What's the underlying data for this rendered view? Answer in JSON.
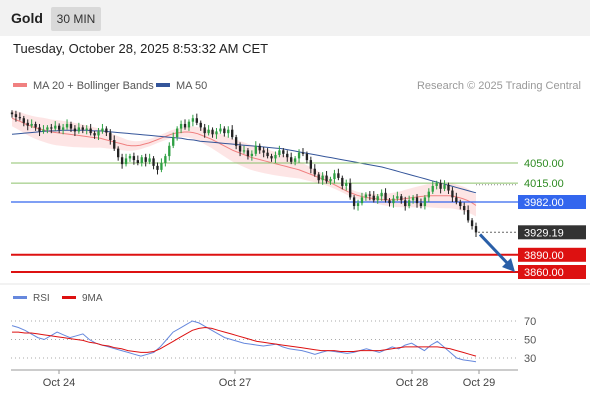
{
  "header": {
    "title": "Gold",
    "timeframe": "30 MIN"
  },
  "timestamp": "Tuesday, October 28, 2025 8:53:32 AM CET",
  "legend": {
    "ma20_label": "MA 20 + Bollinger Bands",
    "ma50_label": "MA 50",
    "attribution": "Research © 2025 Trading Central"
  },
  "rsi_legend": {
    "rsi_label": "RSI",
    "ma_label": "9MA"
  },
  "colors": {
    "ma20": "#f08080",
    "ma50": "#34559a",
    "bollinger": "#fde0e0",
    "up": "#2ea043",
    "down": "#222222",
    "green_level": "#8cc06b",
    "blue_level": "#3366ee",
    "red_level": "#dd1111",
    "rsi": "#6688dd",
    "rsi_ma": "#dd1111"
  },
  "chart_data": [
    {
      "type": "candlestick",
      "title": "Gold",
      "ylim": [
        3840,
        4170
      ],
      "price_levels": [
        {
          "value": 4050.0,
          "label": "4050.00",
          "style": "green-line"
        },
        {
          "value": 4015.0,
          "label": "4015.00",
          "style": "green-line"
        },
        {
          "value": 3982.0,
          "label": "3982.00",
          "style": "blue-line-box"
        },
        {
          "value": 3929.19,
          "label": "3929.19",
          "style": "current-price-box"
        },
        {
          "value": 3890.0,
          "label": "3890.00",
          "style": "red-line-box"
        },
        {
          "value": 3860.0,
          "label": "3860.00",
          "style": "red-line-box"
        }
      ],
      "x_ticks": [
        "Oct 24",
        "Oct 27",
        "Oct 28",
        "Oct 29"
      ],
      "close": [
        4135,
        4130,
        4128,
        4120,
        4115,
        4118,
        4112,
        4105,
        4108,
        4112,
        4110,
        4115,
        4108,
        4112,
        4118,
        4110,
        4105,
        4112,
        4108,
        4110,
        4102,
        4098,
        4105,
        4110,
        4103,
        4090,
        4075,
        4060,
        4048,
        4058,
        4062,
        4055,
        4050,
        4060,
        4052,
        4058,
        4045,
        4038,
        4050,
        4062,
        4080,
        4095,
        4110,
        4118,
        4112,
        4122,
        4128,
        4120,
        4112,
        4102,
        4108,
        4100,
        4105,
        4110,
        4102,
        4108,
        4095,
        4080,
        4070,
        4072,
        4062,
        4066,
        4080,
        4072,
        4068,
        4062,
        4058,
        4064,
        4072,
        4066,
        4060,
        4052,
        4058,
        4068,
        4066,
        4055,
        4040,
        4030,
        4020,
        4028,
        4018,
        4022,
        4032,
        4024,
        4010,
        4015,
        3990,
        3975,
        3980,
        3990,
        3995,
        3993,
        3985,
        3992,
        3998,
        3985,
        3980,
        3988,
        3992,
        3985,
        3975,
        3985,
        3990,
        3980,
        3975,
        3990,
        4000,
        4010,
        4015,
        4005,
        4012,
        4002,
        3990,
        3982,
        3975,
        3968,
        3950,
        3940,
        3929
      ],
      "ma20_level": [
        4128,
        4125,
        4122,
        4118,
        4115,
        4112,
        4110,
        4108,
        4106,
        4104,
        4103,
        4102,
        4101,
        4100,
        4099,
        4098,
        4097,
        4096,
        4095,
        4094,
        4093,
        4091,
        4089,
        4087,
        4085,
        4083,
        4081,
        4080,
        4080,
        4081,
        4083,
        4085,
        4088,
        4091,
        4094,
        4097,
        4100,
        4102,
        4103,
        4104,
        4104,
        4103,
        4101,
        4098,
        4095,
        4092,
        4088,
        4084,
        4080,
        4076,
        4072,
        4069,
        4066,
        4063,
        4060,
        4058,
        4056,
        4054,
        4052,
        4050,
        4048,
        4046,
        4044,
        4042,
        4040,
        4038,
        4035,
        4032,
        4029,
        4026,
        4023,
        4020,
        4016,
        4012,
        4008,
        4004,
        4000,
        3997,
        3994,
        3992,
        3990,
        3989,
        3988,
        3987,
        3986,
        3986,
        3986,
        3986,
        3987,
        3988,
        3989,
        3990,
        3991,
        3992,
        3993,
        3993,
        3993,
        3993,
        3993,
        3993,
        3992,
        3990,
        3988,
        3985,
        3981,
        3976
      ],
      "ma50_level": [
        4100,
        4101,
        4102,
        4103,
        4104,
        4105,
        4106,
        4106,
        4107,
        4107,
        4107,
        4107,
        4107,
        4106,
        4106,
        4105,
        4104,
        4103,
        4102,
        4101,
        4100,
        4099,
        4098,
        4097,
        4096,
        4095,
        4094,
        4093,
        4091,
        4090,
        4088,
        4087,
        4086,
        4085,
        4084,
        4083,
        4082,
        4081,
        4080,
        4079,
        4078,
        4077,
        4076,
        4075,
        4073,
        4071,
        4069,
        4067,
        4065,
        4063,
        4061,
        4059,
        4057,
        4055,
        4053,
        4051,
        4049,
        4047,
        4045,
        4043,
        4040,
        4037,
        4034,
        4031,
        4028,
        4025,
        4022,
        4019,
        4016,
        4013,
        4010,
        4007,
        4004,
        4001,
        3998
      ],
      "rsi": [
        65,
        63,
        60,
        56,
        52,
        50,
        54,
        58,
        55,
        52,
        54,
        56,
        50,
        46,
        44,
        42,
        40,
        38,
        36,
        34,
        32,
        34,
        36,
        42,
        50,
        58,
        62,
        66,
        70,
        68,
        64,
        60,
        56,
        52,
        50,
        48,
        46,
        45,
        44,
        43,
        44,
        45,
        42,
        40,
        39,
        38,
        36,
        34,
        36,
        38,
        37,
        36,
        35,
        36,
        38,
        40,
        38,
        36,
        39,
        42,
        40,
        44,
        46,
        42,
        38,
        44,
        48,
        42,
        36,
        30,
        28,
        27,
        26
      ],
      "rsi_ma": [
        58,
        58,
        57,
        57,
        56,
        55,
        54,
        53,
        52,
        51,
        50,
        49,
        47,
        46,
        44,
        43,
        41,
        40,
        38,
        37,
        36,
        36,
        37,
        40,
        44,
        48,
        52,
        56,
        60,
        62,
        63,
        62,
        60,
        58,
        56,
        54,
        52,
        50,
        48,
        47,
        46,
        45,
        44,
        43,
        42,
        41,
        40,
        39,
        38,
        38,
        38,
        37,
        37,
        37,
        38,
        38,
        38,
        38,
        39,
        40,
        41,
        42,
        42,
        42,
        42,
        42,
        42,
        41,
        40,
        38,
        36,
        34,
        32
      ],
      "rsi_levels": [
        70,
        50,
        30
      ]
    }
  ]
}
